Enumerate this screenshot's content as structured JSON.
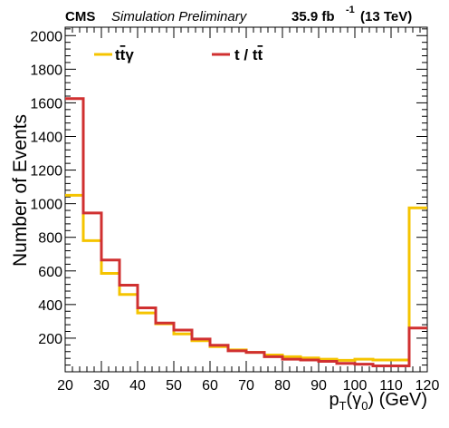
{
  "header": {
    "experiment": "CMS",
    "status": "Simulation Preliminary",
    "lumi": "35.9 fb",
    "lumi_exp": "-1",
    "energy": "(13 TeV)"
  },
  "colors": {
    "ttgamma": "#f5c400",
    "t_tt": "#d03030",
    "axis": "#000000"
  },
  "chart_data": {
    "type": "histogram",
    "xlabel": {
      "main": "p",
      "sub1": "T",
      "mid": "(γ",
      "sub2": "0",
      "tail": ") (GeV)"
    },
    "ylabel": "Number of Events",
    "xlim": [
      20,
      120
    ],
    "ylim": [
      0,
      2050
    ],
    "x_ticks": [
      20,
      30,
      40,
      50,
      60,
      70,
      80,
      90,
      100,
      110,
      120
    ],
    "y_ticks": [
      200,
      400,
      600,
      800,
      1000,
      1200,
      1400,
      1600,
      1800,
      2000
    ],
    "bin_edges": [
      20,
      25,
      30,
      35,
      40,
      45,
      50,
      55,
      60,
      65,
      70,
      75,
      80,
      85,
      90,
      95,
      100,
      105,
      110,
      115,
      120
    ],
    "legend_position": "top",
    "series": [
      {
        "name": "t̅tγ",
        "legend_label": {
          "part1": "t",
          "part2": "t",
          "part3": "γ"
        },
        "color": "#f5c400",
        "values": [
          1050,
          780,
          585,
          460,
          350,
          285,
          225,
          185,
          150,
          130,
          115,
          100,
          90,
          82,
          75,
          68,
          75,
          70,
          70,
          975
        ]
      },
      {
        "name": "t / t̅t",
        "legend_label": {
          "part1": "t / t",
          "part2": "t"
        },
        "color": "#d03030",
        "values": [
          1625,
          945,
          665,
          515,
          380,
          290,
          248,
          195,
          158,
          125,
          115,
          90,
          75,
          70,
          62,
          50,
          45,
          35,
          35,
          260
        ]
      }
    ]
  }
}
